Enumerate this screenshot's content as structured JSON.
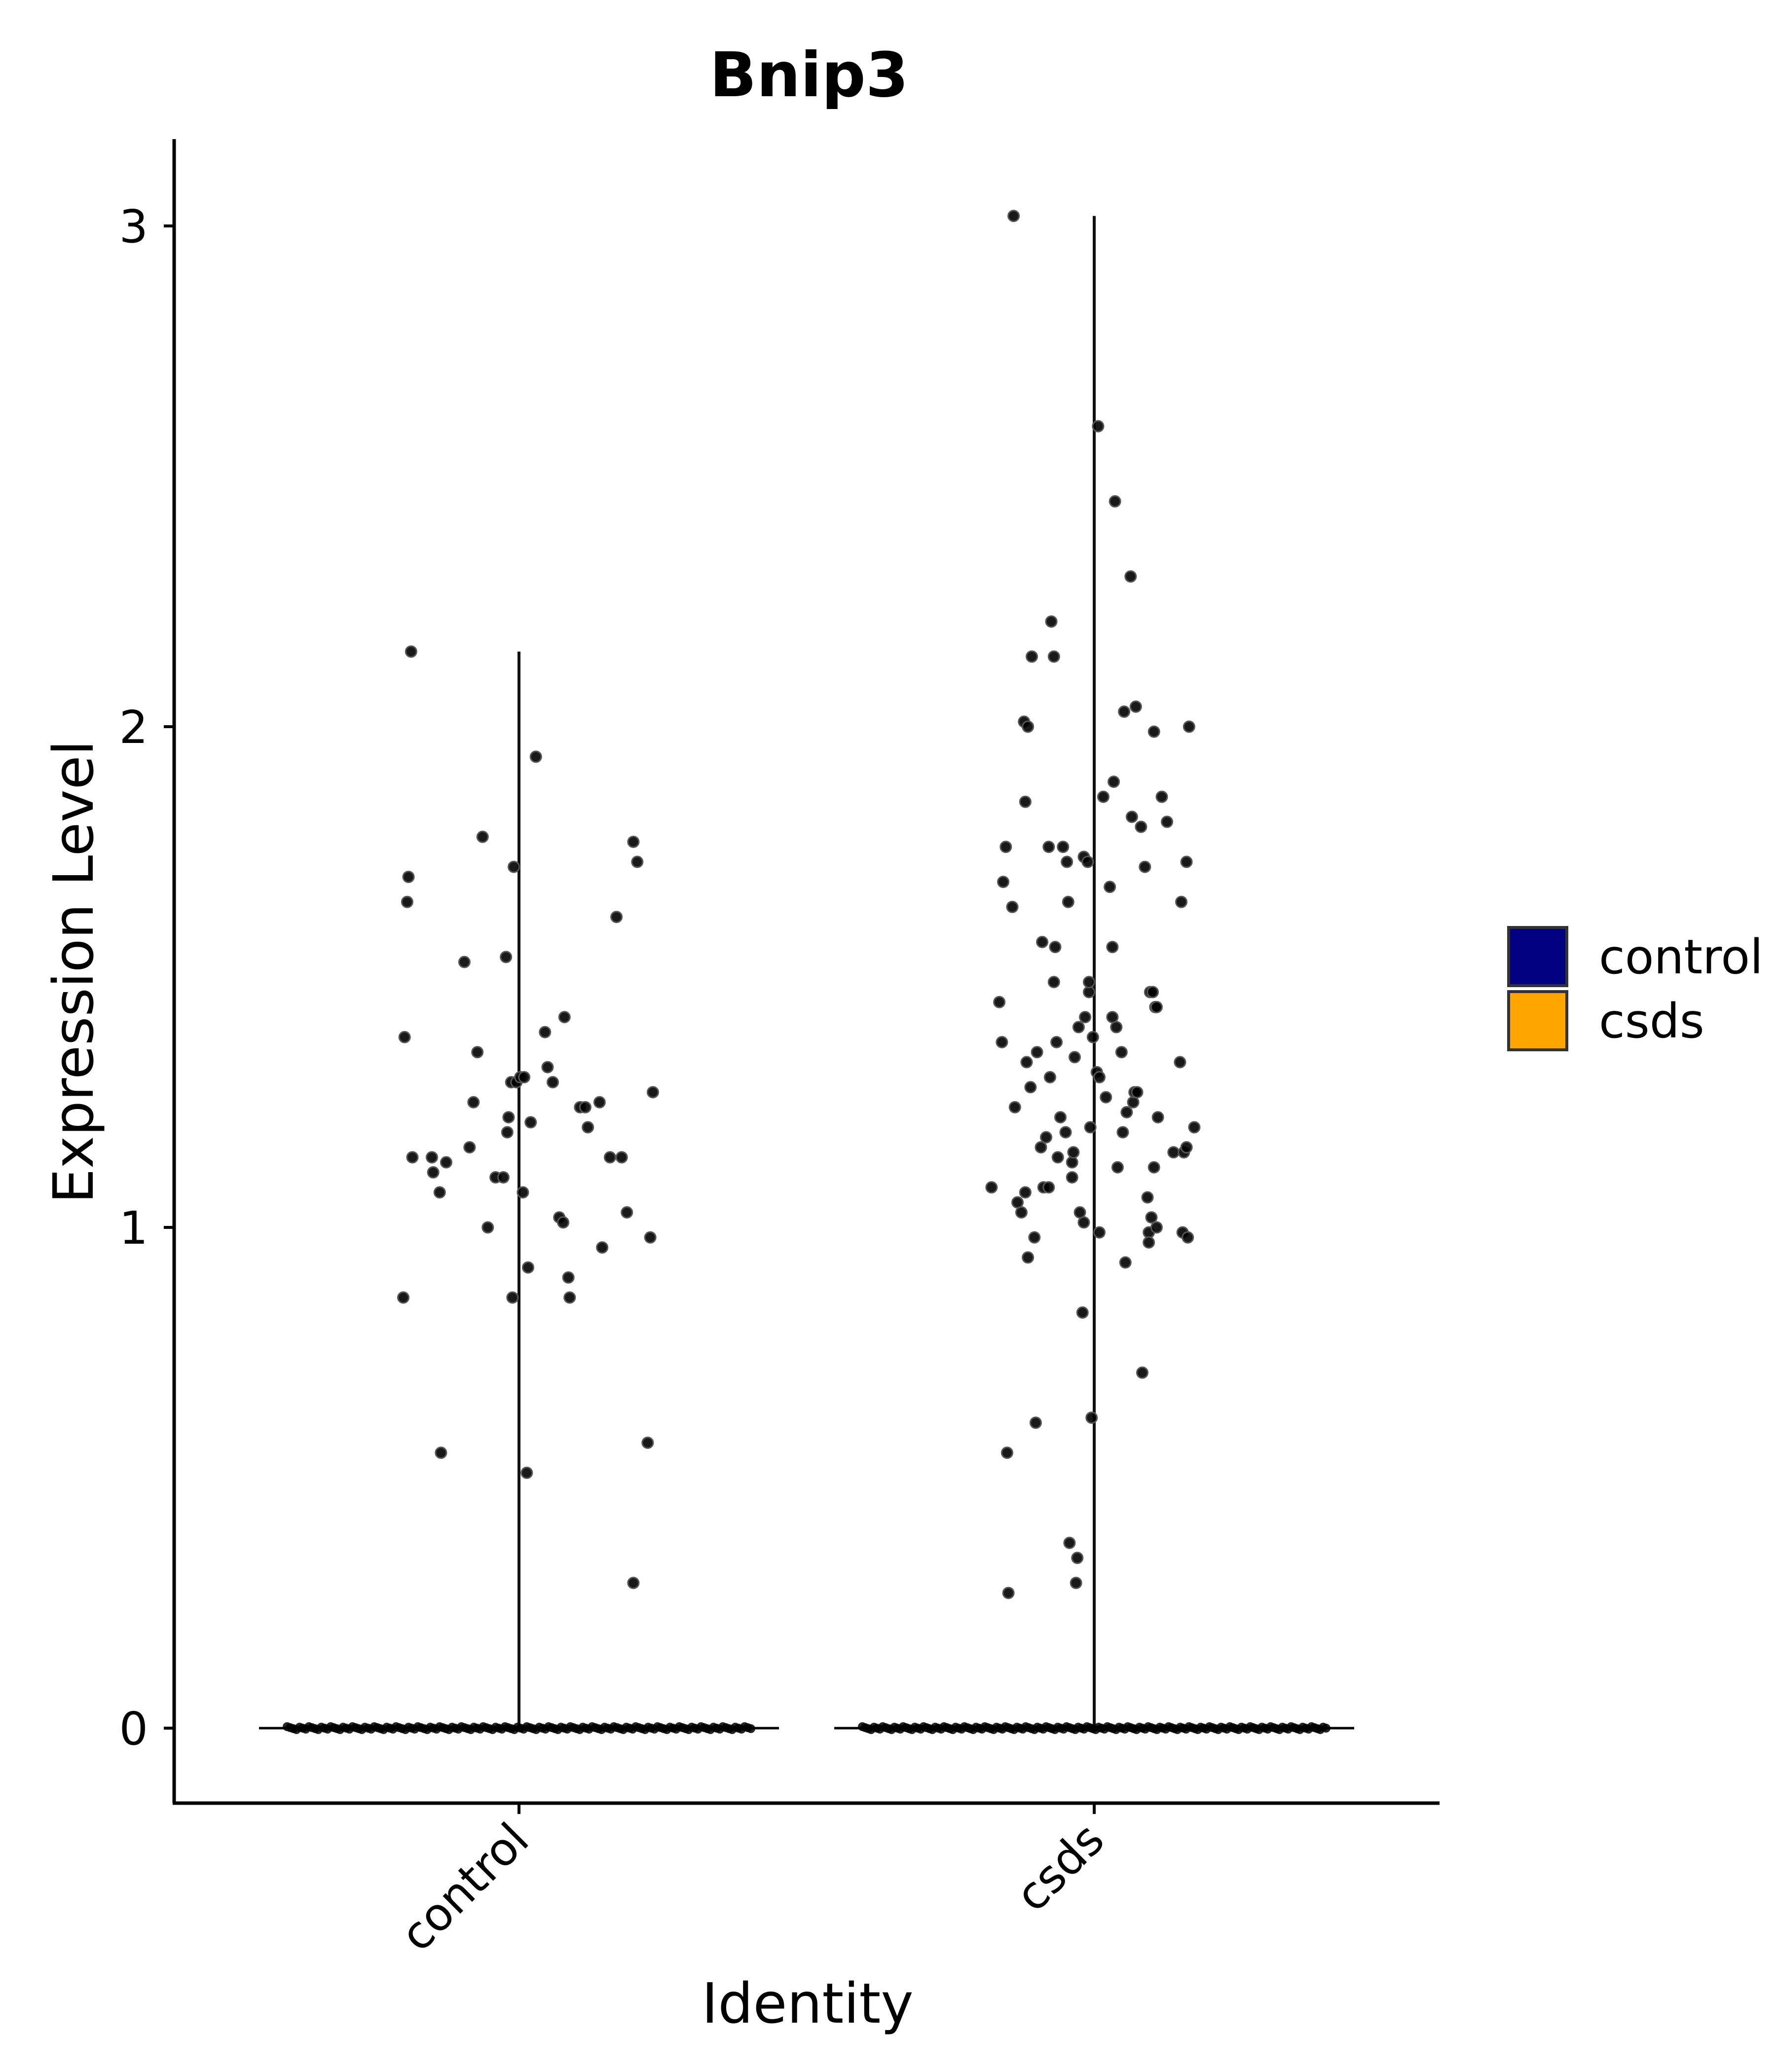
{
  "chart_data": {
    "type": "violin",
    "title": "Bnip3",
    "xlabel": "Identity",
    "ylabel": "Expression Level",
    "categories": [
      "control",
      "csds"
    ],
    "ylim": [
      -0.15,
      3.17
    ],
    "yticks": [
      0,
      1,
      2,
      3
    ],
    "legend": {
      "position": "right",
      "entries": [
        {
          "label": "control",
          "color": "#000080"
        },
        {
          "label": "csds",
          "color": "#FFA500"
        }
      ]
    },
    "series": [
      {
        "name": "control",
        "max": 2.15,
        "zero_point_count": 150,
        "points": [
          [
            -0.445,
            0.86
          ],
          [
            -0.415,
            2.15
          ],
          [
            -0.43,
            1.65
          ],
          [
            -0.425,
            1.7
          ],
          [
            -0.44,
            1.38
          ],
          [
            -0.41,
            1.14
          ],
          [
            -0.335,
            1.14
          ],
          [
            -0.33,
            1.11
          ],
          [
            -0.305,
            1.07
          ],
          [
            -0.28,
            1.13
          ],
          [
            -0.3,
            0.55
          ],
          [
            -0.21,
            1.53
          ],
          [
            -0.19,
            1.16
          ],
          [
            -0.175,
            1.25
          ],
          [
            -0.16,
            1.35
          ],
          [
            -0.14,
            1.78
          ],
          [
            -0.12,
            1.0
          ],
          [
            -0.09,
            1.1
          ],
          [
            -0.06,
            1.1
          ],
          [
            -0.05,
            1.54
          ],
          [
            -0.04,
            1.22
          ],
          [
            -0.045,
            1.19
          ],
          [
            -0.03,
            1.29
          ],
          [
            -0.01,
            1.29
          ],
          [
            0.005,
            1.3
          ],
          [
            -0.02,
            1.72
          ],
          [
            -0.025,
            0.86
          ],
          [
            0.02,
            1.3
          ],
          [
            0.015,
            1.07
          ],
          [
            0.035,
            0.92
          ],
          [
            0.045,
            1.21
          ],
          [
            0.03,
            0.51
          ],
          [
            0.065,
            1.94
          ],
          [
            0.1,
            1.39
          ],
          [
            0.11,
            1.32
          ],
          [
            0.13,
            1.29
          ],
          [
            0.155,
            1.02
          ],
          [
            0.17,
            1.01
          ],
          [
            0.175,
            1.42
          ],
          [
            0.19,
            0.9
          ],
          [
            0.195,
            0.86
          ],
          [
            0.235,
            1.24
          ],
          [
            0.255,
            1.24
          ],
          [
            0.265,
            1.2
          ],
          [
            0.31,
            1.25
          ],
          [
            0.32,
            0.96
          ],
          [
            0.35,
            1.14
          ],
          [
            0.375,
            1.62
          ],
          [
            0.395,
            1.14
          ],
          [
            0.415,
            1.03
          ],
          [
            0.44,
            1.77
          ],
          [
            0.455,
            1.73
          ],
          [
            0.44,
            0.29
          ],
          [
            0.495,
            0.57
          ],
          [
            0.505,
            0.98
          ],
          [
            0.515,
            1.27
          ]
        ]
      },
      {
        "name": "csds",
        "max": 3.02,
        "zero_point_count": 160,
        "points": [
          [
            -0.395,
            1.08
          ],
          [
            -0.365,
            1.45
          ],
          [
            -0.355,
            1.37
          ],
          [
            -0.35,
            1.69
          ],
          [
            -0.34,
            1.76
          ],
          [
            -0.335,
            0.55
          ],
          [
            -0.33,
            0.27
          ],
          [
            -0.315,
            1.64
          ],
          [
            -0.31,
            3.02
          ],
          [
            -0.305,
            1.24
          ],
          [
            -0.295,
            1.05
          ],
          [
            -0.28,
            1.03
          ],
          [
            -0.27,
            2.01
          ],
          [
            -0.265,
            1.07
          ],
          [
            -0.265,
            1.85
          ],
          [
            -0.26,
            1.33
          ],
          [
            -0.255,
            2.0
          ],
          [
            -0.255,
            0.94
          ],
          [
            -0.245,
            1.28
          ],
          [
            -0.24,
            2.14
          ],
          [
            -0.23,
            0.98
          ],
          [
            -0.225,
            0.61
          ],
          [
            -0.22,
            1.35
          ],
          [
            -0.205,
            1.16
          ],
          [
            -0.2,
            1.57
          ],
          [
            -0.195,
            1.08
          ],
          [
            -0.185,
            1.18
          ],
          [
            -0.175,
            1.76
          ],
          [
            -0.17,
            1.3
          ],
          [
            -0.175,
            1.08
          ],
          [
            -0.165,
            2.21
          ],
          [
            -0.155,
            2.14
          ],
          [
            -0.155,
            1.49
          ],
          [
            -0.15,
            1.56
          ],
          [
            -0.145,
            1.37
          ],
          [
            -0.14,
            1.14
          ],
          [
            -0.13,
            1.22
          ],
          [
            -0.12,
            1.76
          ],
          [
            -0.11,
            1.19
          ],
          [
            -0.105,
            1.73
          ],
          [
            -0.1,
            1.65
          ],
          [
            -0.095,
            0.37
          ],
          [
            -0.085,
            1.13
          ],
          [
            -0.085,
            1.1
          ],
          [
            -0.08,
            1.15
          ],
          [
            -0.075,
            1.34
          ],
          [
            -0.07,
            0.29
          ],
          [
            -0.065,
            0.34
          ],
          [
            -0.06,
            1.4
          ],
          [
            -0.055,
            1.03
          ],
          [
            -0.045,
            0.83
          ],
          [
            -0.04,
            1.74
          ],
          [
            -0.04,
            1.01
          ],
          [
            -0.025,
            1.73
          ],
          [
            -0.035,
            1.42
          ],
          [
            -0.02,
            1.47
          ],
          [
            -0.02,
            1.49
          ],
          [
            -0.015,
            1.2
          ],
          [
            -0.01,
            0.62
          ],
          [
            -0.005,
            1.38
          ],
          [
            0.01,
            1.31
          ],
          [
            0.015,
            2.6
          ],
          [
            0.02,
            1.3
          ],
          [
            0.02,
            0.99
          ],
          [
            0.035,
            1.86
          ],
          [
            0.045,
            1.26
          ],
          [
            0.06,
            1.68
          ],
          [
            0.07,
            1.42
          ],
          [
            0.075,
            1.89
          ],
          [
            0.07,
            1.56
          ],
          [
            0.08,
            2.45
          ],
          [
            0.085,
            1.4
          ],
          [
            0.09,
            1.12
          ],
          [
            0.105,
            1.35
          ],
          [
            0.11,
            1.19
          ],
          [
            0.115,
            2.03
          ],
          [
            0.12,
            0.93
          ],
          [
            0.125,
            1.23
          ],
          [
            0.14,
            2.3
          ],
          [
            0.145,
            1.82
          ],
          [
            0.15,
            1.25
          ],
          [
            0.155,
            1.27
          ],
          [
            0.16,
            2.04
          ],
          [
            0.165,
            1.27
          ],
          [
            0.18,
            1.8
          ],
          [
            0.185,
            0.71
          ],
          [
            0.195,
            1.72
          ],
          [
            0.205,
            1.06
          ],
          [
            0.21,
            0.99
          ],
          [
            0.21,
            0.97
          ],
          [
            0.215,
            1.47
          ],
          [
            0.22,
            1.02
          ],
          [
            0.225,
            1.47
          ],
          [
            0.23,
            1.99
          ],
          [
            0.23,
            1.12
          ],
          [
            0.235,
            1.44
          ],
          [
            0.24,
            1.0
          ],
          [
            0.24,
            1.44
          ],
          [
            0.245,
            1.22
          ],
          [
            0.26,
            1.86
          ],
          [
            0.28,
            1.81
          ],
          [
            0.305,
            1.15
          ],
          [
            0.33,
            1.33
          ],
          [
            0.335,
            1.65
          ],
          [
            0.34,
            0.99
          ],
          [
            0.345,
            1.15
          ],
          [
            0.355,
            1.16
          ],
          [
            0.355,
            1.73
          ],
          [
            0.36,
            0.98
          ],
          [
            0.365,
            2.0
          ],
          [
            0.385,
            1.2
          ]
        ]
      }
    ]
  }
}
